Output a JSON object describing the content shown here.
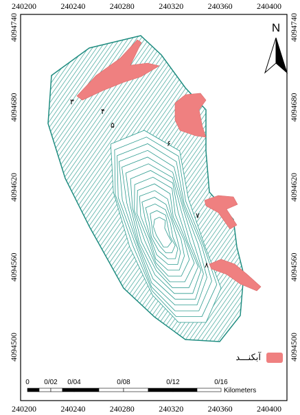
{
  "map": {
    "north": "N",
    "xticks": [
      240200,
      240240,
      240280,
      240320,
      240360,
      240400
    ],
    "yticks": [
      4094740,
      4094680,
      4094620,
      4094560,
      4094500
    ],
    "points": [
      "۳",
      "۴",
      "۵",
      "۶",
      "۷",
      "۸"
    ],
    "legend": "آبکنـــد",
    "scale_labels": [
      "0",
      "0/02",
      "0/04",
      "0/08",
      "0/12",
      "0/16"
    ],
    "scale_unit": "Kilometers"
  }
}
